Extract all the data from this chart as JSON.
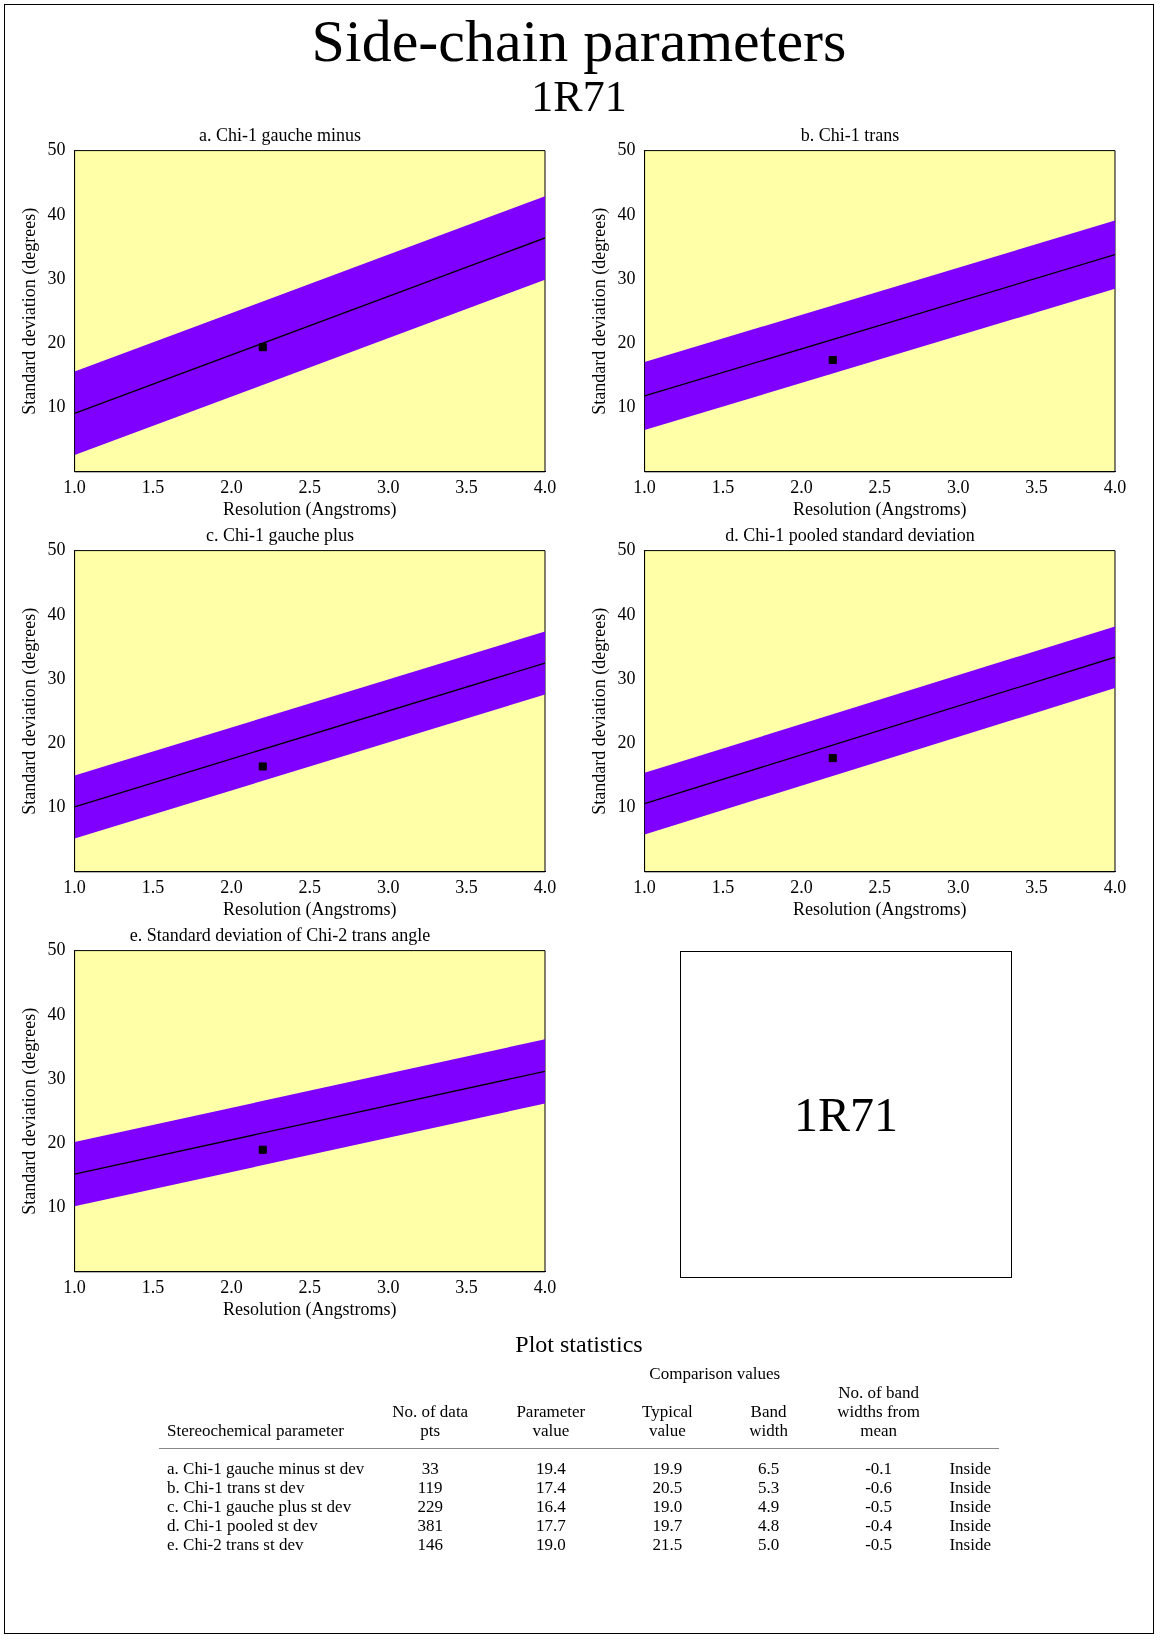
{
  "chart_data": [
    {
      "type": "other",
      "title": "Side-chain parameters",
      "subtitle": "1R71"
    },
    {
      "type": "line",
      "title": "a. Chi-1 gauche minus",
      "xlabel": "Resolution (Angstroms)",
      "ylabel": "Standard deviation (degrees)",
      "xlim": [
        1,
        4
      ],
      "ylim": [
        0,
        50
      ],
      "xticks": [
        {
          "value": 1,
          "label": "1.0"
        },
        {
          "value": 1.5,
          "label": "1.5"
        },
        {
          "value": 2,
          "label": "2.0"
        },
        {
          "value": 2.5,
          "label": "2.5"
        },
        {
          "value": 3,
          "label": "3.0"
        },
        {
          "value": 3.5,
          "label": "3.5"
        },
        {
          "value": 4,
          "label": "4.0"
        }
      ],
      "yticks": [
        10,
        20,
        30,
        40,
        50
      ],
      "series": [
        {
          "type": "line",
          "color": "#000000",
          "x": [
            1,
            4
          ],
          "values": [
            9.1,
            36.4
          ],
          "lower": [
            2.6,
            29.9
          ],
          "upper": [
            15.6,
            42.9
          ]
        },
        {
          "type": "scatter",
          "marker": "square",
          "color": "#000000",
          "x": [
            2.2
          ],
          "values": [
            19.4
          ]
        }
      ]
    },
    {
      "type": "line",
      "title": "b. Chi-1 trans",
      "xlabel": "Resolution (Angstroms)",
      "ylabel": "Standard deviation (degrees)",
      "xlim": [
        1,
        4
      ],
      "ylim": [
        0,
        50
      ],
      "xticks": [
        {
          "value": 1,
          "label": "1.0"
        },
        {
          "value": 1.5,
          "label": "1.5"
        },
        {
          "value": 2,
          "label": "2.0"
        },
        {
          "value": 2.5,
          "label": "2.5"
        },
        {
          "value": 3,
          "label": "3.0"
        },
        {
          "value": 3.5,
          "label": "3.5"
        },
        {
          "value": 4,
          "label": "4.0"
        }
      ],
      "yticks": [
        10,
        20,
        30,
        40,
        50
      ],
      "series": [
        {
          "type": "line",
          "color": "#000000",
          "x": [
            1,
            4
          ],
          "values": [
            11.8,
            33.8
          ],
          "lower": [
            6.5,
            28.5
          ],
          "upper": [
            17.1,
            39.1
          ]
        },
        {
          "type": "scatter",
          "marker": "square",
          "color": "#000000",
          "x": [
            2.2
          ],
          "values": [
            17.4
          ]
        }
      ]
    },
    {
      "type": "line",
      "title": "c. Chi-1 gauche plus",
      "xlabel": "Resolution (Angstroms)",
      "ylabel": "Standard deviation (degrees)",
      "xlim": [
        1,
        4
      ],
      "ylim": [
        0,
        50
      ],
      "xticks": [
        {
          "value": 1,
          "label": "1.0"
        },
        {
          "value": 1.5,
          "label": "1.5"
        },
        {
          "value": 2,
          "label": "2.0"
        },
        {
          "value": 2.5,
          "label": "2.5"
        },
        {
          "value": 3,
          "label": "3.0"
        },
        {
          "value": 3.5,
          "label": "3.5"
        },
        {
          "value": 4,
          "label": "4.0"
        }
      ],
      "yticks": [
        10,
        20,
        30,
        40,
        50
      ],
      "series": [
        {
          "type": "line",
          "color": "#000000",
          "x": [
            1,
            4
          ],
          "values": [
            10.1,
            32.5
          ],
          "lower": [
            5.2,
            27.6
          ],
          "upper": [
            15.0,
            37.4
          ]
        },
        {
          "type": "scatter",
          "marker": "square",
          "color": "#000000",
          "x": [
            2.2
          ],
          "values": [
            16.4
          ]
        }
      ]
    },
    {
      "type": "line",
      "title": "d. Chi-1 pooled standard deviation",
      "xlabel": "Resolution (Angstroms)",
      "ylabel": "Standard deviation (degrees)",
      "xlim": [
        1,
        4
      ],
      "ylim": [
        0,
        50
      ],
      "xticks": [
        {
          "value": 1,
          "label": "1.0"
        },
        {
          "value": 1.5,
          "label": "1.5"
        },
        {
          "value": 2,
          "label": "2.0"
        },
        {
          "value": 2.5,
          "label": "2.5"
        },
        {
          "value": 3,
          "label": "3.0"
        },
        {
          "value": 3.5,
          "label": "3.5"
        },
        {
          "value": 4,
          "label": "4.0"
        }
      ],
      "yticks": [
        10,
        20,
        30,
        40,
        50
      ],
      "series": [
        {
          "type": "line",
          "color": "#000000",
          "x": [
            1,
            4
          ],
          "values": [
            10.6,
            33.4
          ],
          "lower": [
            5.8,
            28.6
          ],
          "upper": [
            15.4,
            38.2
          ]
        },
        {
          "type": "scatter",
          "marker": "square",
          "color": "#000000",
          "x": [
            2.2
          ],
          "values": [
            17.7
          ]
        }
      ]
    },
    {
      "type": "line",
      "title": "e. Standard deviation of Chi-2 trans angle",
      "xlabel": "Resolution (Angstroms)",
      "ylabel": "Standard deviation (degrees)",
      "xlim": [
        1,
        4
      ],
      "ylim": [
        0,
        50
      ],
      "xticks": [
        {
          "value": 1,
          "label": "1.0"
        },
        {
          "value": 1.5,
          "label": "1.5"
        },
        {
          "value": 2,
          "label": "2.0"
        },
        {
          "value": 2.5,
          "label": "2.5"
        },
        {
          "value": 3,
          "label": "3.0"
        },
        {
          "value": 3.5,
          "label": "3.5"
        },
        {
          "value": 4,
          "label": "4.0"
        }
      ],
      "yticks": [
        10,
        20,
        30,
        40,
        50
      ],
      "series": [
        {
          "type": "line",
          "color": "#000000",
          "x": [
            1,
            4
          ],
          "values": [
            15.2,
            31.2
          ],
          "lower": [
            10.2,
            26.2
          ],
          "upper": [
            20.2,
            36.2
          ]
        },
        {
          "type": "scatter",
          "marker": "square",
          "color": "#000000",
          "x": [
            2.2
          ],
          "values": [
            19.0
          ]
        }
      ]
    },
    {
      "type": "other",
      "title": "1R71"
    },
    {
      "type": "other",
      "title": "Plot statistics",
      "annotations": [
        "Comparison values",
        "Stereochemical parameter\tNo. of data pts\tParameter value\tTypical value\tBand width\tNo. of band widths from mean\t",
        "a. Chi-1 gauche minus st dev\t33\t19.4\t19.9\t6.5\t-0.1\tInside",
        "b. Chi-1 trans st dev\t119\t17.4\t20.5\t5.3\t-0.6\tInside",
        "c. Chi-1 gauche plus st dev\t229\t16.4\t19.0\t4.9\t-0.5\tInside",
        "d. Chi-1 pooled st dev\t381\t17.7\t19.7\t4.8\t-0.4\tInside",
        "e. Chi-2 trans st dev\t146\t19.0\t21.5\t5.0\t-0.5\tInside"
      ]
    }
  ]
}
